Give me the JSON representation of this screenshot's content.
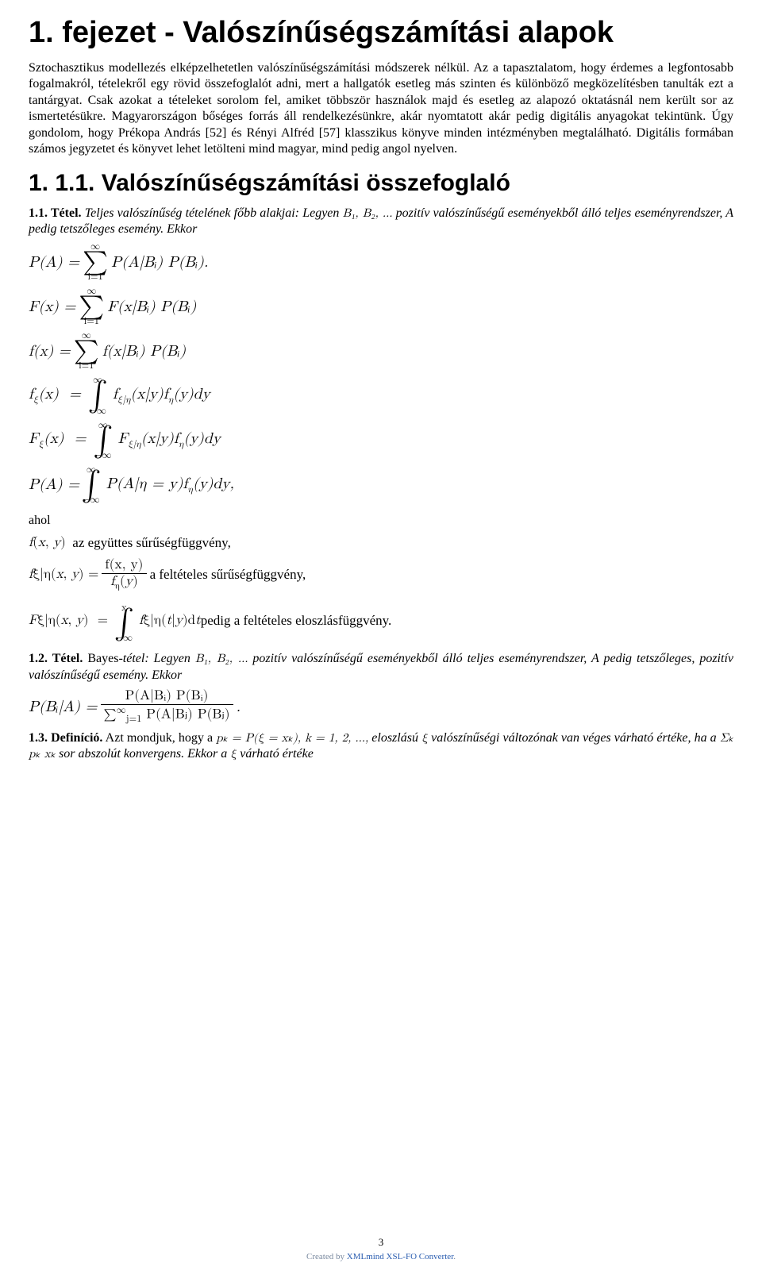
{
  "colors": {
    "text": "#000000",
    "background": "#ffffff",
    "footer_gray": "#7a8aa0",
    "footer_link": "#2a5db0"
  },
  "typography": {
    "body_font": "Times New Roman",
    "heading_font": "Arial",
    "h1_size_pt": 28,
    "h2_size_pt": 22,
    "body_size_pt": 12,
    "line_height_body": 1.28
  },
  "title": "1. fejezet - Valószínűségszámítási alapok",
  "intro": "Sztochasztikus modellezés elképzelhetetlen valószínűségszámítási módszerek nélkül. Az a tapasztalatom, hogy érdemes a legfontosabb fogalmakról, tételekről egy rövid összefoglalót adni, mert a hallgatók esetleg más szinten és különböző megközelítésben tanulták ezt a tantárgyat. Csak azokat a tételeket sorolom fel, amiket többször használok majd és esetleg az alapozó oktatásnál nem került sor az ismertetésükre. Magyarországon bőséges forrás áll rendelkezésünkre, akár nyomtatott akár pedig digitális anyagokat tekintünk. Úgy gondolom, hogy Prékopa András [52] és Rényi Alfréd [57] klasszikus könyve minden intézményben megtalálható. Digitális formában számos jegyzetet és könyvet lehet letölteni mind magyar, mind pedig angol nyelven.",
  "section_1_1_title": "1. 1.1. Valószínűségszámítási összefoglaló",
  "tetel_1_1": {
    "lead_bold": "1.1. Tétel.",
    "text_pre": " Teljes valószínűség tételének főbb alakjai: Legyen ",
    "events_inline": "B₁, B₂, …",
    "text_post": " pozitív valószínűségű eseményekből álló teljes eseményrendszer, A pedig tetszőleges esemény. Ekkor"
  },
  "equations_block_1": {
    "rows": [
      {
        "lhs": "P(A) = ",
        "type": "sum",
        "upper": "∞",
        "lower": "i=1",
        "rhs": "P(A|Bᵢ) P(Bᵢ)."
      },
      {
        "lhs": "F(x) = ",
        "type": "sum",
        "upper": "∞",
        "lower": "i=1",
        "rhs": "F(x|Bᵢ) P(Bᵢ)"
      },
      {
        "lhs": "f(x) = ",
        "type": "sum",
        "upper": "∞",
        "lower": "i=1",
        "rhs": "f(x|Bᵢ) P(Bᵢ)"
      },
      {
        "lhs": "f_ξ(x) = ",
        "type": "int",
        "upper": "∞",
        "lower": "−∞",
        "rhs": "f_{ξ|η}(x|y) f_η(y) dy"
      },
      {
        "lhs": "F_ξ(x) = ",
        "type": "int",
        "upper": "∞",
        "lower": "−∞",
        "rhs": "F_{ξ|η}(x|y) f_η(y) dy"
      },
      {
        "lhs": "P(A) = ",
        "type": "int",
        "upper": "∞",
        "lower": "−∞",
        "rhs": "P(A|η = y) f_η(y) dy,"
      }
    ]
  },
  "ahol_label": "ahol",
  "defs_block": {
    "line1": "f(x, y)  az együttes sűrűségfüggvény,",
    "line2_lhs": "f_{ξ|η}(x, y) = ",
    "line2_frac_num": "f(x, y)",
    "line2_frac_den": "f_η(y)",
    "line2_rhs": "  a feltételes sűrűségfüggvény,",
    "line3_lhs": "F_{ξ|η}(x, y) = ",
    "line3_int_upper": "x",
    "line3_int_lower": "−∞",
    "line3_integrand": "f_{ξ|η}(t|y) dt",
    "line3_rhs": "  pedig a feltételes eloszlásfüggvény."
  },
  "tetel_1_2": {
    "lead_bold": "1.2. Tétel.",
    "lead_plain": " Bayes",
    "text_pre": "-tétel: Legyen ",
    "events_inline": "B₁, B₂, …",
    "text_post": " pozitív valószínűségű eseményekből álló teljes eseményrendszer, A pedig tetszőleges, pozitív valószínűségű esemény. Ekkor"
  },
  "bayes_eq": {
    "lhs": "P(Bᵢ|A) = ",
    "num": "P(A|Bᵢ) P(Bᵢ)",
    "den_sum_upper": "∞",
    "den_sum_lower": "j=1",
    "den_rhs": " P(A|Bⱼ) P(Bⱼ)",
    "trail": "."
  },
  "def_1_3": {
    "lead_bold": "1.3. Definíció.",
    "text_pre": " Azt mondjuk, hogy a ",
    "pk_inline": "pₖ = P(ξ = xₖ), k = 1, 2, …,",
    "text_mid": " eloszlású ",
    "xi": "ξ",
    "text_mid2": " valószínűségi változónak van véges várható értéke, ha a ",
    "sum_inline": "Σₖ pₖ xₖ",
    "text_mid3": " sor abszolút konvergens. Ekkor a ",
    "xi2": "ξ",
    "text_end": " várható értéke"
  },
  "footer": {
    "page_number": "3",
    "credit_pre": "Created by ",
    "credit_link": "XMLmind XSL-FO Converter",
    "credit_post": "."
  }
}
